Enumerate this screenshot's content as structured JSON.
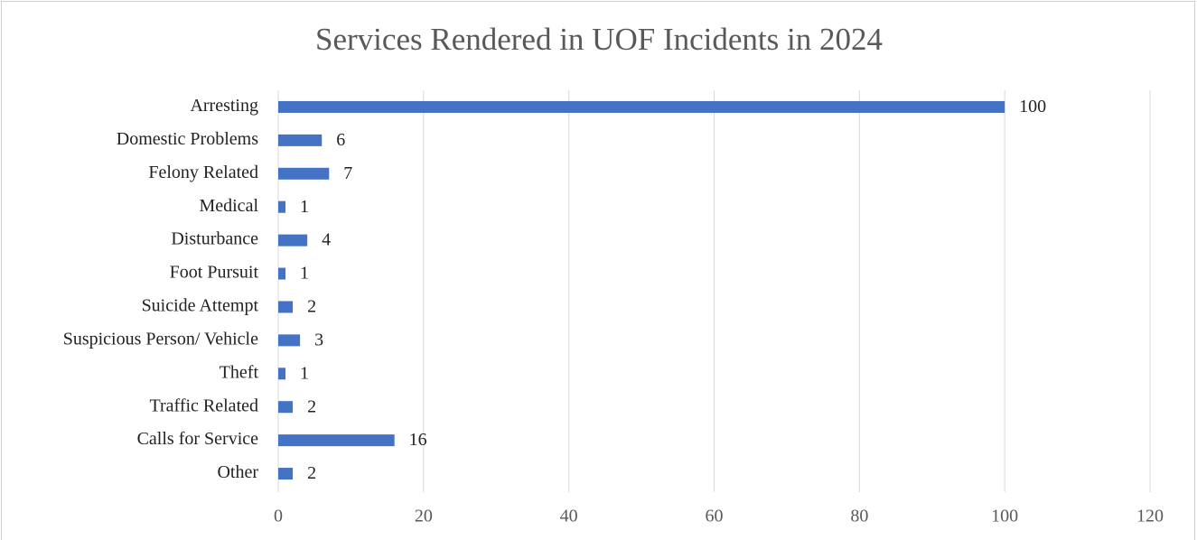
{
  "chart_data": {
    "type": "bar",
    "orientation": "horizontal",
    "title": "Services Rendered in UOF Incidents in 2024",
    "categories": [
      "Arresting",
      "Domestic Problems",
      "Felony Related",
      "Medical",
      "Disturbance",
      "Foot Pursuit",
      "Suicide Attempt",
      "Suspicious Person/ Vehicle",
      "Theft",
      "Traffic Related",
      "Calls for Service",
      "Other"
    ],
    "values": [
      100,
      6,
      7,
      1,
      4,
      1,
      2,
      3,
      1,
      2,
      16,
      2
    ],
    "color": "#4472c4",
    "xlim": [
      0,
      120
    ],
    "xticks": [
      0,
      20,
      40,
      60,
      80,
      100,
      120
    ],
    "grid": true
  }
}
